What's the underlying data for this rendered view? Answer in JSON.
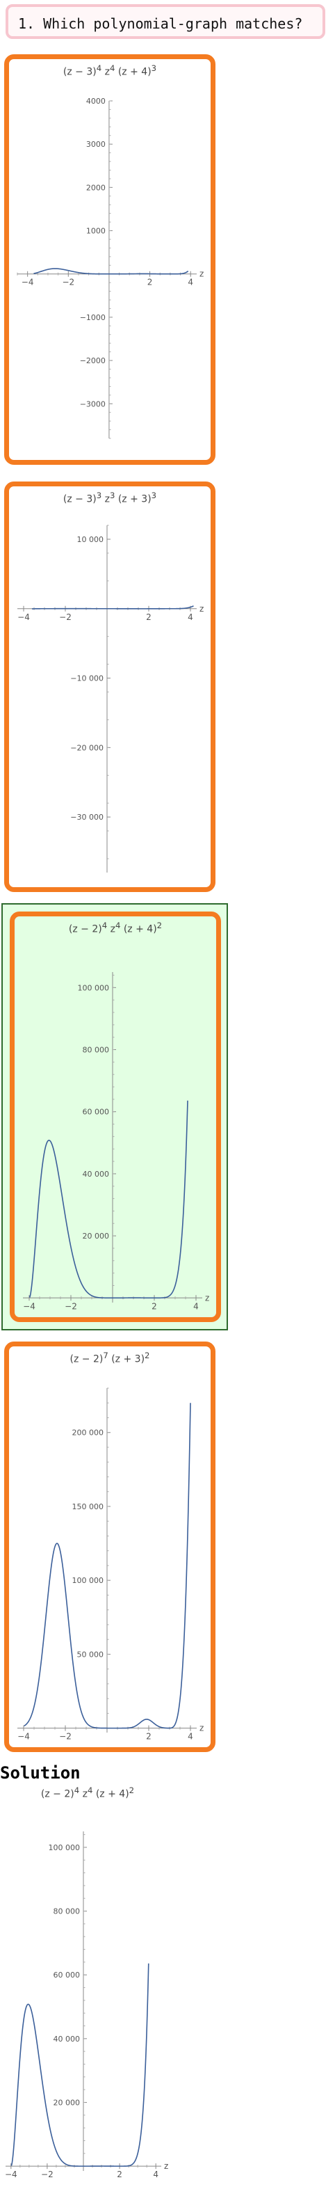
{
  "question": {
    "text": "1. Which polynomial-graph matches?"
  },
  "solution_label": "Solution",
  "options": [
    {
      "title_html": "(z − 3)<sup>4</sup> z<sup>4</sup> (z + 4)<sup>3</sup>",
      "selected": false,
      "chart_data": {
        "type": "line",
        "title": "(z − 3)^4 z^4 (z + 4)^3",
        "xlabel": "z",
        "xlim": [
          -4.5,
          4.3
        ],
        "ylim": [
          -3800,
          4000
        ],
        "xticks": [
          -4,
          -2,
          2,
          4
        ],
        "xtick_labels": [
          "−4",
          "−2",
          "2",
          "4"
        ],
        "yticks": [
          4000,
          3000,
          2000,
          1000,
          -1000,
          -2000,
          -3000
        ],
        "ytick_labels": [
          "4000",
          "3000",
          "2000",
          "1000",
          "−1000",
          "−2000",
          "−3000"
        ],
        "function": "(z-3)^4 z^4 (z+4)^3 / 1000",
        "x_range": [
          -3.7,
          3.88
        ],
        "series_color": "#3b5f9a"
      }
    },
    {
      "title_html": "(z − 3)<sup>3</sup> z<sup>3</sup> (z + 3)<sup>3</sup>",
      "selected": false,
      "chart_data": {
        "type": "line",
        "title": "(z − 3)^3 z^3 (z + 3)^3",
        "xlabel": "z",
        "xlim": [
          -4.3,
          4.3
        ],
        "ylim": [
          -38000,
          12000
        ],
        "xticks": [
          -4,
          -2,
          2,
          4
        ],
        "xtick_labels": [
          "−4",
          "−2",
          "2",
          "4"
        ],
        "yticks": [
          10000,
          -10000,
          -20000,
          -30000
        ],
        "ytick_labels": [
          "10 000",
          "−10 000",
          "−20 000",
          "−30 000"
        ],
        "function": "(z-3)^3 z^3 (z+3)^3 / 100",
        "x_range": [
          -3.6,
          4.15
        ],
        "series_color": "#3b5f9a"
      }
    },
    {
      "title_html": "(z − 2)<sup>4</sup> z<sup>4</sup> (z + 4)<sup>2</sup>",
      "selected": true,
      "chart_data": {
        "type": "line",
        "title": "(z − 2)^4 z^4 (z + 4)^2",
        "xlabel": "z",
        "xlim": [
          -4.3,
          4.3
        ],
        "ylim": [
          -1500,
          105000
        ],
        "xticks": [
          -4,
          -2,
          2,
          4
        ],
        "xtick_labels": [
          "−4",
          "−2",
          "2",
          "4"
        ],
        "yticks": [
          100000,
          80000,
          60000,
          40000,
          20000
        ],
        "ytick_labels": [
          "100 000",
          "80 000",
          "60 000",
          "40 000",
          "20 000"
        ],
        "function": "(z-2)^4 z^4 (z+4)^2",
        "x_range": [
          -3.98,
          3.6
        ],
        "series_color": "#3b5f9a"
      }
    },
    {
      "title_html": "(z − 2)<sup>7</sup> (z + 3)<sup>2</sup>",
      "selected": false,
      "chart_data": {
        "type": "line",
        "title": "(z − 2)^7 (z + 3)^2",
        "xlabel": "z",
        "xlim": [
          -4.3,
          4.3
        ],
        "ylim": [
          -3000,
          230000
        ],
        "xticks": [
          -4,
          -2,
          2,
          4
        ],
        "xtick_labels": [
          "−4",
          "−2",
          "2",
          "4"
        ],
        "yticks": [
          200000,
          150000,
          100000,
          50000
        ],
        "ytick_labels": [
          "200 000",
          "150 000",
          "100 000",
          "50 000"
        ],
        "function": "shape: hump ≈125000 at z≈−2.4, small bump ≈6000 at z≈2, ≈220000 at z=4",
        "x_range": [
          -3.98,
          4.0
        ],
        "series_color": "#3b5f9a"
      }
    }
  ],
  "solution": {
    "title_html": "(z − 2)<sup>4</sup> z<sup>4</sup> (z + 4)<sup>2</sup>",
    "chart_data": {
      "type": "line",
      "title": "(z − 2)^4 z^4 (z + 4)^2",
      "xlabel": "z",
      "xlim": [
        -4.3,
        4.3
      ],
      "ylim": [
        -1500,
        105000
      ],
      "xticks": [
        -4,
        -2,
        2,
        4
      ],
      "xtick_labels": [
        "−4",
        "−2",
        "2",
        "4"
      ],
      "yticks": [
        100000,
        80000,
        60000,
        40000,
        20000
      ],
      "ytick_labels": [
        "100 000",
        "80 000",
        "60 000",
        "40 000",
        "20 000"
      ],
      "function": "(z-2)^4 z^4 (z+4)^2",
      "x_range": [
        -3.98,
        3.6
      ],
      "series_color": "#3b5f9a"
    }
  }
}
